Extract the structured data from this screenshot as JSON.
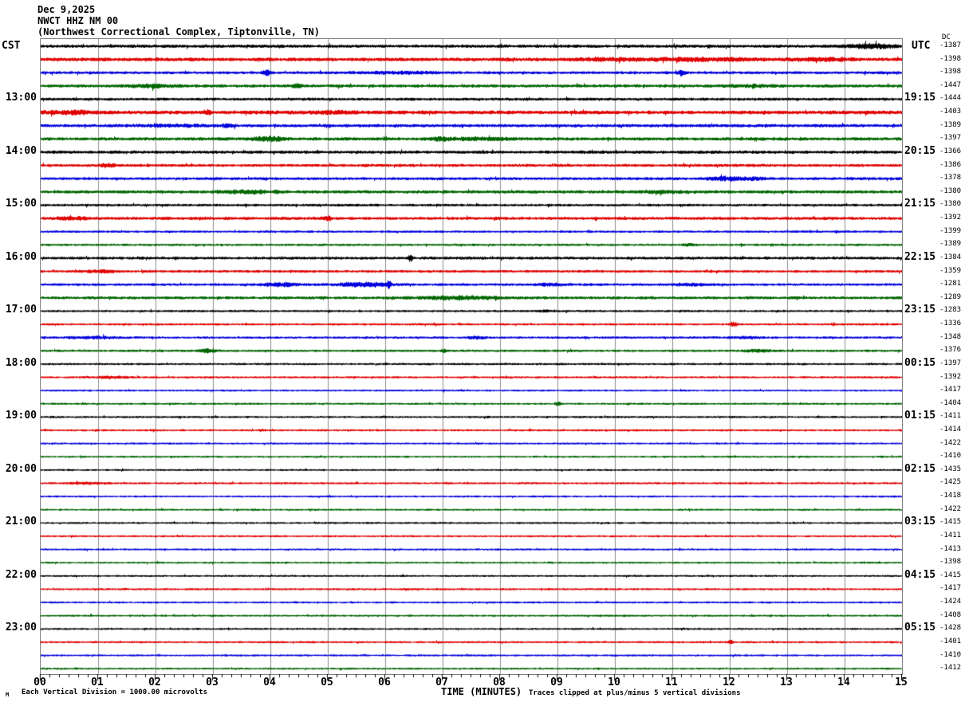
{
  "header": {
    "date": "Dec 9,2025",
    "station_line": "NWCT HHZ NM 00",
    "location_line": "(Northwest Correctional Complex, Tiptonville, TN)"
  },
  "left_axis": {
    "label": "CST",
    "hour_labels": [
      "13:00",
      "14:00",
      "15:00",
      "16:00",
      "17:00",
      "18:00",
      "19:00",
      "20:00",
      "21:00",
      "22:00",
      "23:00"
    ]
  },
  "right_axis": {
    "label": "UTC",
    "dc_header": "DC",
    "hour_labels": [
      "19:15",
      "20:15",
      "21:15",
      "22:15",
      "23:15",
      "00:15",
      "01:15",
      "02:15",
      "03:15",
      "04:15",
      "05:15"
    ],
    "dc_values": [
      -1387,
      -1398,
      -1398,
      -1447,
      -1444,
      -1403,
      -1389,
      -1397,
      -1366,
      -1386,
      -1378,
      -1380,
      -1380,
      -1392,
      -1399,
      -1389,
      -1384,
      -1359,
      -1281,
      -1289,
      -1283,
      -1336,
      -1348,
      -1376,
      -1397,
      -1392,
      -1417,
      -1404,
      -1411,
      -1414,
      -1422,
      -1410,
      -1435,
      -1425,
      -1418,
      -1422,
      -1415,
      -1411,
      -1413,
      -1398,
      -1415,
      -1417,
      -1424,
      -1408,
      -1428,
      -1401,
      -1410,
      -1412
    ]
  },
  "x_axis": {
    "tick_labels": [
      "00",
      "01",
      "02",
      "03",
      "04",
      "05",
      "06",
      "07",
      "08",
      "09",
      "10",
      "11",
      "12",
      "13",
      "14",
      "15"
    ],
    "title": "TIME (MINUTES)"
  },
  "footer": {
    "left_note": "Each Vertical Division = 1000.00 microvolts",
    "right_note": "Traces clipped at plus/minus 5 vertical divisions",
    "corner_mark": "M"
  },
  "plot": {
    "minutes": 15,
    "rows": 48,
    "colors": {
      "cycle": [
        "#000000",
        "#e00000",
        "#0000dd",
        "#006600"
      ],
      "grid": "#8c8c8c",
      "border": "#808080"
    },
    "row_amps": [
      2.3,
      2.6,
      2.1,
      2.3,
      2.1,
      2.7,
      2.3,
      2.4,
      2.3,
      2.1,
      2.1,
      2.3,
      1.9,
      2.2,
      1.7,
      1.7,
      2.1,
      1.9,
      1.9,
      2.1,
      1.6,
      1.6,
      1.7,
      1.7,
      1.6,
      1.5,
      1.4,
      1.5,
      1.5,
      1.5,
      1.4,
      1.4,
      1.4,
      1.5,
      1.4,
      1.4,
      1.4,
      1.4,
      1.4,
      1.4,
      1.4,
      1.5,
      1.4,
      1.4,
      1.4,
      1.5,
      1.4,
      1.4
    ],
    "events": [
      [
        0,
        14.45,
        0.3,
        2.6
      ],
      [
        1,
        9.8,
        0.45,
        1.1
      ],
      [
        1,
        11.6,
        0.7,
        1.4
      ],
      [
        1,
        13.6,
        0.35,
        1.5
      ],
      [
        2,
        3.92,
        0.05,
        2.6
      ],
      [
        2,
        6.3,
        0.5,
        0.9
      ],
      [
        2,
        11.15,
        0.04,
        3.6
      ],
      [
        3,
        1.95,
        0.25,
        1.7
      ],
      [
        3,
        4.42,
        0.08,
        2.1
      ],
      [
        3,
        12.4,
        0.3,
        0.8
      ],
      [
        5,
        0.55,
        0.3,
        1.7
      ],
      [
        5,
        2.9,
        0.05,
        3.0
      ],
      [
        5,
        5.0,
        0.4,
        1.2
      ],
      [
        6,
        2.3,
        0.35,
        1.1
      ],
      [
        6,
        3.25,
        0.08,
        1.5
      ],
      [
        7,
        3.95,
        0.22,
        2.2
      ],
      [
        7,
        6.95,
        0.08,
        2.4
      ],
      [
        7,
        7.6,
        0.5,
        1.1
      ],
      [
        9,
        1.15,
        0.08,
        2.2
      ],
      [
        10,
        11.9,
        0.2,
        2.6
      ],
      [
        10,
        12.45,
        0.12,
        1.4
      ],
      [
        11,
        3.6,
        0.3,
        1.9
      ],
      [
        11,
        10.8,
        0.25,
        1.0
      ],
      [
        13,
        0.6,
        0.25,
        1.4
      ],
      [
        13,
        5.0,
        0.06,
        1.9
      ],
      [
        15,
        11.3,
        0.06,
        1.6
      ],
      [
        16,
        6.42,
        0.025,
        5.5
      ],
      [
        17,
        1.0,
        0.18,
        1.5
      ],
      [
        18,
        4.15,
        0.22,
        2.2
      ],
      [
        18,
        5.6,
        0.3,
        2.4
      ],
      [
        18,
        6.05,
        0.03,
        4.5
      ],
      [
        18,
        8.9,
        0.18,
        1.4
      ],
      [
        18,
        11.3,
        0.25,
        1.0
      ],
      [
        19,
        7.3,
        0.5,
        1.9
      ],
      [
        20,
        8.8,
        0.1,
        1.1
      ],
      [
        21,
        12.05,
        0.04,
        3.4
      ],
      [
        22,
        0.95,
        0.3,
        1.1
      ],
      [
        22,
        7.55,
        0.12,
        1.7
      ],
      [
        22,
        12.3,
        0.2,
        0.9
      ],
      [
        23,
        2.9,
        0.12,
        1.7
      ],
      [
        23,
        7.0,
        0.03,
        2.4
      ],
      [
        23,
        12.45,
        0.18,
        1.4
      ],
      [
        25,
        1.2,
        0.25,
        1.1
      ],
      [
        27,
        9.0,
        0.03,
        2.4
      ],
      [
        33,
        0.8,
        0.25,
        0.9
      ],
      [
        45,
        12.0,
        0.04,
        2.2
      ]
    ]
  },
  "chart_data": {
    "type": "line",
    "subtype": "helicorder-seismogram",
    "title": "NWCT HHZ NM 00",
    "subtitle": "(Northwest Correctional Complex, Tiptonville, TN)",
    "date": "Dec 9,2025",
    "xlabel": "TIME (MINUTES)",
    "x_range": [
      0,
      15
    ],
    "row_duration_minutes": 15,
    "rows_total": 48,
    "trace_color_cycle": [
      "black",
      "red",
      "blue",
      "green"
    ],
    "left_time_axis": {
      "timezone": "CST",
      "hour_marks": [
        "13:00",
        "14:00",
        "15:00",
        "16:00",
        "17:00",
        "18:00",
        "19:00",
        "20:00",
        "21:00",
        "22:00",
        "23:00"
      ]
    },
    "right_time_axis": {
      "timezone": "UTC",
      "hour_marks": [
        "19:15",
        "20:15",
        "21:15",
        "22:15",
        "23:15",
        "00:15",
        "01:15",
        "02:15",
        "03:15",
        "04:15",
        "05:15"
      ]
    },
    "dc_offsets_per_row": [
      -1387,
      -1398,
      -1398,
      -1447,
      -1444,
      -1403,
      -1389,
      -1397,
      -1366,
      -1386,
      -1378,
      -1380,
      -1380,
      -1392,
      -1399,
      -1389,
      -1384,
      -1359,
      -1281,
      -1289,
      -1283,
      -1336,
      -1348,
      -1376,
      -1397,
      -1392,
      -1417,
      -1404,
      -1411,
      -1414,
      -1422,
      -1410,
      -1435,
      -1425,
      -1418,
      -1422,
      -1415,
      -1411,
      -1413,
      -1398,
      -1415,
      -1417,
      -1424,
      -1408,
      -1428,
      -1401,
      -1410,
      -1412
    ],
    "scale_note": "Each Vertical Division = 1000.00 microvolts",
    "clip_note": "Traces clipped at plus/minus 5 vertical divisions",
    "grid": "vertical gridlines every 1 minute; minor x ticks every 10 seconds"
  }
}
